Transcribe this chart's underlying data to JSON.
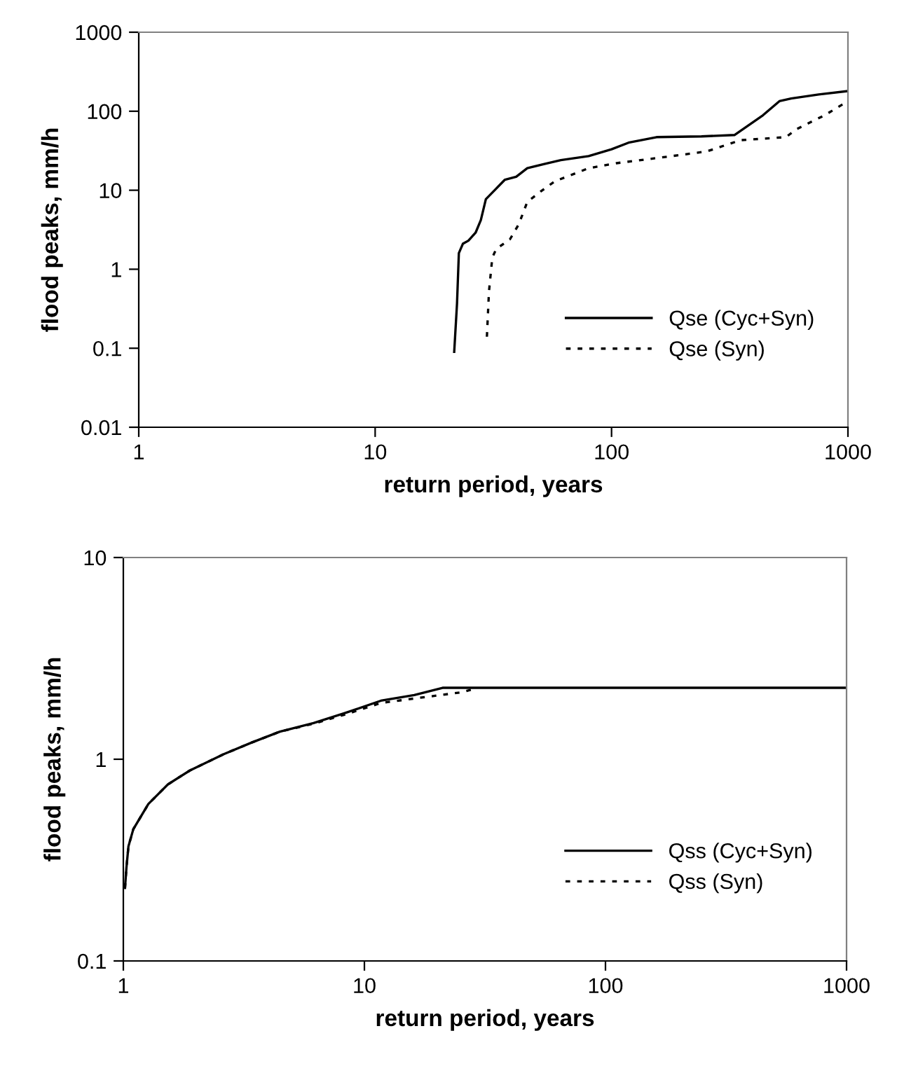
{
  "chart_data": [
    {
      "type": "line",
      "xlabel": "return period, years",
      "ylabel": "flood peaks, mm/h",
      "log": "xy",
      "xlim": [
        1,
        1000
      ],
      "ylim": [
        0.01,
        1000
      ],
      "xticks": [
        1,
        10,
        100,
        1000
      ],
      "yticks": [
        0.01,
        0.1,
        1,
        10,
        100,
        1000
      ],
      "grid": false,
      "legend": "bottom right",
      "marker": "none",
      "series": [
        {
          "name": "Qse (Cyc+Syn)",
          "color": "#000000",
          "line_style": "solid",
          "x": [
            21.6,
            22.2,
            22.6,
            23.5,
            24.8,
            26.6,
            28.0,
            29.4,
            31.8,
            35.4,
            39.5,
            44,
            52,
            61,
            80,
            100,
            118,
            155,
            240,
            331,
            437,
            513,
            575,
            752,
            1000
          ],
          "values": [
            0.09,
            0.37,
            1.6,
            2.1,
            2.3,
            2.9,
            4.2,
            7.7,
            9.8,
            13.6,
            14.8,
            19,
            21.5,
            24,
            27,
            33,
            40,
            47,
            48,
            50,
            89,
            134,
            145,
            163,
            180
          ]
        },
        {
          "name": "Qse (Syn)",
          "color": "#000000",
          "line_style": "dotted",
          "x": [
            29.7,
            30.3,
            31.3,
            32.5,
            37.2,
            40.5,
            44,
            50.5,
            57.6,
            80,
            105,
            163,
            253,
            351,
            547,
            604,
            797,
            1000
          ],
          "values": [
            0.14,
            0.52,
            1.4,
            1.8,
            2.4,
            3.7,
            7.1,
            9.8,
            13,
            19,
            22,
            26,
            31,
            43,
            47,
            59,
            89,
            134
          ]
        }
      ]
    },
    {
      "type": "line",
      "xlabel": "return period, years",
      "ylabel": "flood peaks, mm/h",
      "log": "xy",
      "xlim": [
        1,
        1000
      ],
      "ylim": [
        0.1,
        10
      ],
      "xticks": [
        1,
        10,
        100,
        1000
      ],
      "yticks": [
        0.1,
        1,
        10
      ],
      "grid": false,
      "legend": "bottom right",
      "marker": "none",
      "series": [
        {
          "name": "Qss (Cyc+Syn)",
          "color": "#000000",
          "line_style": "solid",
          "x": [
            1.016,
            1.03,
            1.05,
            1.1,
            1.27,
            1.53,
            1.89,
            2.61,
            3.41,
            4.46,
            6.15,
            8.5,
            11.7,
            16.1,
            21.1,
            1000
          ],
          "values": [
            0.23,
            0.29,
            0.37,
            0.45,
            0.6,
            0.75,
            0.88,
            1.06,
            1.21,
            1.37,
            1.51,
            1.71,
            1.95,
            2.08,
            2.26,
            2.26
          ]
        },
        {
          "name": "Qss (Syn)",
          "color": "#000000",
          "line_style": "dotted",
          "x": [
            1.016,
            1.03,
            1.05,
            1.1,
            1.27,
            1.53,
            1.89,
            2.61,
            3.41,
            4.46,
            6.15,
            8.5,
            11.7,
            16.1,
            24.8,
            29.1
          ],
          "values": [
            0.23,
            0.29,
            0.37,
            0.45,
            0.6,
            0.75,
            0.88,
            1.06,
            1.21,
            1.37,
            1.5,
            1.68,
            1.9,
            2.0,
            2.14,
            2.24
          ]
        }
      ]
    }
  ]
}
